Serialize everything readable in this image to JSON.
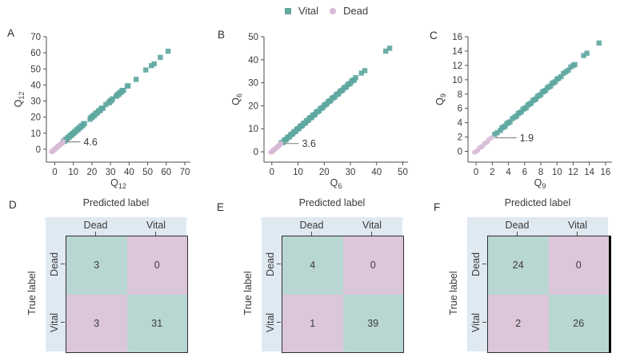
{
  "figure": {
    "panel_labels": [
      "A",
      "B",
      "C",
      "D",
      "E",
      "F"
    ],
    "legend": {
      "items": [
        {
          "label": "Vital",
          "marker": "square",
          "color": "#5fa8a1"
        },
        {
          "label": "Dead",
          "marker": "circle",
          "color": "#d7bbd6"
        }
      ]
    },
    "colors": {
      "vital_marker": "#5fa8a1",
      "dead_marker": "#d7bbd6",
      "cell_true": "#b9d7d2",
      "cell_false": "#dcc6da",
      "label_band": "#dfe9f2",
      "text": "#3b3b3b",
      "spine": "#4d4d4d"
    }
  },
  "chart_data": [
    {
      "id": "A",
      "type": "scatter",
      "xlabel_base": "Q",
      "xlabel_sub": "12",
      "ylabel_base": "Q",
      "ylabel_sub": "12",
      "xticks": [
        0,
        10,
        20,
        30,
        40,
        50,
        60,
        70
      ],
      "yticks": [
        0,
        10,
        20,
        30,
        40,
        50,
        60,
        70
      ],
      "xlim": [
        -4.5,
        73
      ],
      "ylim": [
        -8,
        70
      ],
      "annotation": {
        "text": "4.6",
        "x": 4.6,
        "y": 4.6,
        "text_x": 15.5
      },
      "series": [
        {
          "name": "Vital",
          "marker": "square",
          "color": "#5fa8a1",
          "values": [
            4.6,
            5,
            5.4,
            5.8,
            6.2,
            6.6,
            7,
            7.4,
            7.8,
            8.2,
            8.6,
            9,
            9.4,
            9.8,
            10.2,
            10.6,
            11,
            11.4,
            11.8,
            12.2,
            12.6,
            13,
            13.4,
            13.8,
            14.2,
            14.6,
            15,
            15.5,
            16,
            19,
            19.4,
            19.8,
            20.2,
            20.6,
            21,
            21.5,
            22,
            22.5,
            23,
            23.5,
            24,
            24.5,
            25,
            25.5,
            26,
            27.5,
            29,
            29.4,
            29.8,
            30.2,
            30.6,
            31,
            33,
            33.4,
            33.8,
            34.2,
            34.6,
            35,
            35.4,
            35.8,
            36.2,
            36.6,
            37,
            39,
            39.5,
            43.8,
            49,
            52,
            53.5,
            56.8,
            61
          ]
        },
        {
          "name": "Dead",
          "marker": "circle",
          "color": "#d7bbd6",
          "values": [
            -1.8,
            -1.5,
            -1.2,
            -0.9,
            -0.6,
            -0.3,
            0,
            0.3,
            0.6,
            0.9,
            1.2,
            1.5,
            1.8,
            2.1,
            2.4,
            2.7,
            3,
            3.3,
            3.6,
            3.9,
            4.2,
            4.6
          ]
        }
      ]
    },
    {
      "id": "B",
      "type": "scatter",
      "xlabel_base": "Q",
      "xlabel_sub": "6",
      "ylabel_base": "Q",
      "ylabel_sub": "6",
      "xticks": [
        0,
        10,
        20,
        30,
        40,
        50
      ],
      "yticks": [
        0,
        10,
        20,
        30,
        40,
        50
      ],
      "xlim": [
        -3,
        52
      ],
      "ylim": [
        -4.5,
        50
      ],
      "annotation": {
        "text": "3.6",
        "x": 3.6,
        "y": 3.6,
        "text_x": 11.5
      },
      "series": [
        {
          "name": "Vital",
          "marker": "square",
          "color": "#5fa8a1",
          "values": [
            3.6,
            4,
            4.4,
            4.8,
            5.2,
            5.6,
            6,
            6.4,
            6.8,
            7.2,
            7.6,
            8,
            8.4,
            8.8,
            9.2,
            9.6,
            10,
            10.4,
            10.8,
            11.2,
            11.6,
            12,
            12.4,
            12.8,
            13.2,
            13.6,
            14,
            14.4,
            14.8,
            15.2,
            15.6,
            16,
            16.5,
            17,
            17.5,
            18,
            18.5,
            19,
            19.5,
            20,
            20.5,
            21,
            21.5,
            22,
            22.5,
            23,
            23.5,
            24,
            24.5,
            25,
            25.5,
            26,
            26.5,
            27,
            27.5,
            28,
            28.5,
            29,
            29.5,
            30,
            30.5,
            31,
            31.5,
            32,
            34.2,
            35.5,
            43.5,
            45
          ]
        },
        {
          "name": "Dead",
          "marker": "circle",
          "color": "#d7bbd6",
          "values": [
            -0.4,
            -0.1,
            0.2,
            0.5,
            0.8,
            1.1,
            1.4,
            1.7,
            2,
            2.3,
            2.6,
            2.9,
            3.2,
            3.6
          ]
        }
      ]
    },
    {
      "id": "C",
      "type": "scatter",
      "xlabel_base": "Q",
      "xlabel_sub": "9",
      "ylabel_base": "Q",
      "ylabel_sub": "9",
      "xticks": [
        0,
        2,
        4,
        6,
        8,
        10,
        12,
        14,
        16
      ],
      "yticks": [
        0,
        2,
        4,
        6,
        8,
        10,
        12,
        14,
        16
      ],
      "xlim": [
        -1,
        16.8
      ],
      "ylim": [
        -1.5,
        16
      ],
      "annotation": {
        "text": "1.9",
        "x": 1.9,
        "y": 1.9,
        "text_x": 5.4
      },
      "series": [
        {
          "name": "Vital",
          "marker": "square",
          "color": "#5fa8a1",
          "values": [
            2.3,
            2.6,
            3,
            3.2,
            3.4,
            3.6,
            3.8,
            4,
            4.2,
            4.5,
            4.8,
            5,
            5.2,
            5.4,
            5.6,
            5.8,
            6,
            6.2,
            6.4,
            6.6,
            6.8,
            7,
            7.2,
            7.4,
            7.6,
            7.8,
            8,
            8.2,
            8.4,
            8.6,
            8.8,
            9,
            9.2,
            9.4,
            9.6,
            9.8,
            10,
            10.2,
            10.5,
            10.8,
            11.1,
            11.4,
            11.7,
            12,
            12.2,
            13.3,
            13.7,
            15.2
          ]
        },
        {
          "name": "Dead",
          "marker": "circle",
          "color": "#d7bbd6",
          "values": [
            -0.2,
            0,
            0.2,
            0.4,
            0.6,
            0.8,
            1,
            1.2,
            1.4,
            1.6,
            1.9
          ]
        }
      ]
    },
    {
      "id": "D",
      "type": "heatmap",
      "title": "Predicted label",
      "ylabel": "True label",
      "col_labels": [
        "Dead",
        "Vital"
      ],
      "row_labels": [
        "Dead",
        "Vital"
      ],
      "cells": [
        [
          3,
          0
        ],
        [
          3,
          31
        ]
      ]
    },
    {
      "id": "E",
      "type": "heatmap",
      "title": "Predicted label",
      "ylabel": "True label",
      "col_labels": [
        "Dead",
        "Vital"
      ],
      "row_labels": [
        "Dead",
        "Vital"
      ],
      "cells": [
        [
          4,
          0
        ],
        [
          1,
          39
        ]
      ]
    },
    {
      "id": "F",
      "type": "heatmap",
      "title": "Predicted label",
      "ylabel": "True label",
      "col_labels": [
        "Dead",
        "Vital"
      ],
      "row_labels": [
        "Dead",
        "Vital"
      ],
      "cells": [
        [
          24,
          0
        ],
        [
          2,
          26
        ]
      ]
    }
  ]
}
